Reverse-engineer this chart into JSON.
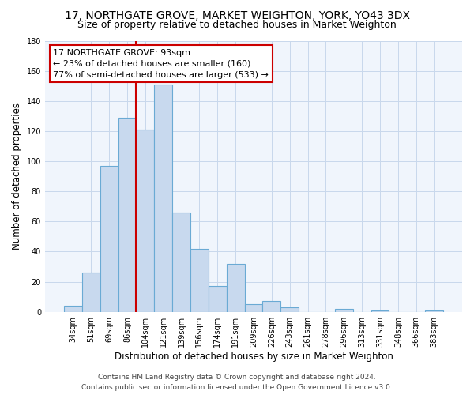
{
  "title": "17, NORTHGATE GROVE, MARKET WEIGHTON, YORK, YO43 3DX",
  "subtitle": "Size of property relative to detached houses in Market Weighton",
  "xlabel": "Distribution of detached houses by size in Market Weighton",
  "ylabel": "Number of detached properties",
  "bin_labels": [
    "34sqm",
    "51sqm",
    "69sqm",
    "86sqm",
    "104sqm",
    "121sqm",
    "139sqm",
    "156sqm",
    "174sqm",
    "191sqm",
    "209sqm",
    "226sqm",
    "243sqm",
    "261sqm",
    "278sqm",
    "296sqm",
    "313sqm",
    "331sqm",
    "348sqm",
    "366sqm",
    "383sqm"
  ],
  "bar_values": [
    4,
    26,
    97,
    129,
    121,
    151,
    66,
    42,
    17,
    32,
    5,
    7,
    3,
    0,
    0,
    2,
    0,
    1,
    0,
    0,
    1
  ],
  "bar_color": "#c8d9ee",
  "bar_edge_color": "#6aaad4",
  "vline_color": "#cc0000",
  "annotation_title": "17 NORTHGATE GROVE: 93sqm",
  "annotation_line1": "← 23% of detached houses are smaller (160)",
  "annotation_line2": "77% of semi-detached houses are larger (533) →",
  "annotation_box_color": "#ffffff",
  "annotation_box_edge": "#cc0000",
  "ylim": [
    0,
    180
  ],
  "yticks": [
    0,
    20,
    40,
    60,
    80,
    100,
    120,
    140,
    160,
    180
  ],
  "footer_line1": "Contains HM Land Registry data © Crown copyright and database right 2024.",
  "footer_line2": "Contains public sector information licensed under the Open Government Licence v3.0.",
  "title_fontsize": 10,
  "subtitle_fontsize": 9,
  "axis_label_fontsize": 8.5,
  "tick_fontsize": 7,
  "annotation_fontsize": 8,
  "footer_fontsize": 6.5,
  "grid_color": "#c8d8ec",
  "bg_color": "#f0f5fc"
}
